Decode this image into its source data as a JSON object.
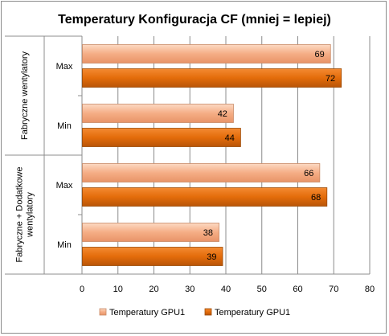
{
  "chart_data": {
    "type": "bar",
    "orientation": "horizontal",
    "title": "Temperatury Konfiguracja CF (mniej = lepiej)",
    "xlim": [
      0,
      80
    ],
    "x_ticks": [
      0,
      10,
      20,
      30,
      40,
      50,
      60,
      70,
      80
    ],
    "grid": true,
    "legend_position": "bottom",
    "groups": [
      {
        "label": "Fabryczne wentylatory",
        "categories": [
          {
            "label": "Max",
            "values": [
              69,
              72
            ]
          },
          {
            "label": "Min",
            "values": [
              42,
              44
            ]
          }
        ]
      },
      {
        "label": "Fabryczne + Dodatkowe wentylatory",
        "categories": [
          {
            "label": "Max",
            "values": [
              66,
              68
            ]
          },
          {
            "label": "Min",
            "values": [
              38,
              39
            ]
          }
        ]
      }
    ],
    "series": [
      {
        "name": "Temperatury GPU1",
        "color": "#F7B38C"
      },
      {
        "name": "Temperatury GPU1",
        "color": "#E46C0A"
      }
    ]
  }
}
